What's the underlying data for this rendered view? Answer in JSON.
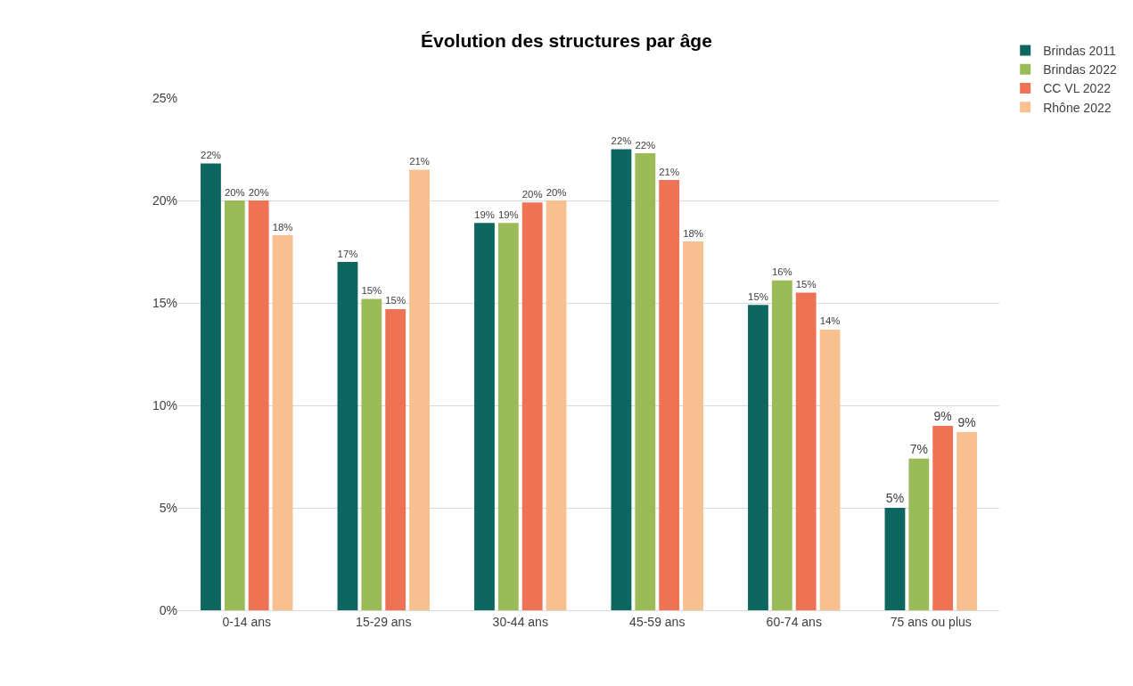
{
  "chart_data": {
    "type": "bar",
    "title": "Évolution des structures par âge",
    "categories": [
      "0-14 ans",
      "15-29 ans",
      "30-44 ans",
      "45-59 ans",
      "60-74 ans",
      "75 ans ou plus"
    ],
    "series": [
      {
        "name": "Brindas 2011",
        "color": "#0e6660",
        "values": [
          21.8,
          17.0,
          18.9,
          22.5,
          14.9,
          5.0
        ],
        "value_labels": [
          "22%",
          "17%",
          "19%",
          "22%",
          "15%",
          "5%"
        ]
      },
      {
        "name": "Brindas 2022",
        "color": "#9bbb59",
        "values": [
          20.0,
          15.2,
          18.9,
          22.3,
          16.1,
          7.4
        ],
        "value_labels": [
          "20%",
          "15%",
          "19%",
          "22%",
          "16%",
          "7%"
        ]
      },
      {
        "name": "CC VL 2022",
        "color": "#ee7354",
        "values": [
          20.0,
          14.7,
          19.9,
          21.0,
          15.5,
          9.0
        ],
        "value_labels": [
          "20%",
          "15%",
          "20%",
          "21%",
          "15%",
          "9%"
        ]
      },
      {
        "name": "Rhône 2022",
        "color": "#f9c08f",
        "values": [
          18.3,
          21.5,
          20.0,
          18.0,
          13.7,
          8.7
        ],
        "value_labels": [
          "18%",
          "21%",
          "20%",
          "18%",
          "14%",
          "9%"
        ]
      }
    ],
    "ylim": [
      0,
      25
    ],
    "yticks": [
      {
        "value": 0,
        "label": "0%"
      },
      {
        "value": 5,
        "label": "5%"
      },
      {
        "value": 10,
        "label": "10%"
      },
      {
        "value": 15,
        "label": "15%"
      },
      {
        "value": 20,
        "label": "20%"
      },
      {
        "value": 25,
        "label": "25%"
      }
    ],
    "grid": "y",
    "legend": "top right"
  }
}
